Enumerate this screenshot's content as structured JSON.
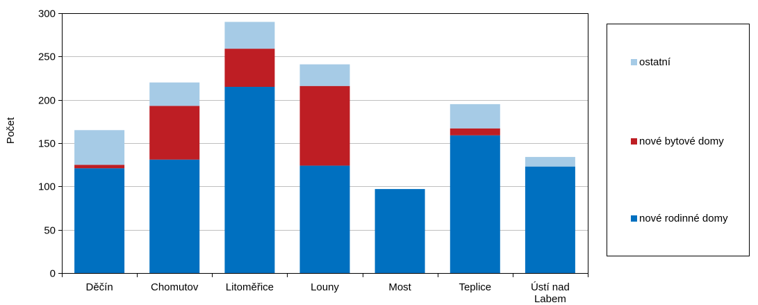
{
  "chart_data": {
    "type": "bar",
    "stacked": true,
    "title": "",
    "xlabel": "",
    "ylabel": "Počet",
    "ylim": [
      0,
      300
    ],
    "yticks": [
      0,
      50,
      100,
      150,
      200,
      250,
      300
    ],
    "grid": true,
    "legend_position": "right",
    "categories": [
      "Děčín",
      "Chomutov",
      "Litoměřice",
      "Louny",
      "Most",
      "Teplice",
      "Ústí nad Labem"
    ],
    "category_lines": [
      [
        "Děčín"
      ],
      [
        "Chomutov"
      ],
      [
        "Litoměřice"
      ],
      [
        "Louny"
      ],
      [
        "Most"
      ],
      [
        "Teplice"
      ],
      [
        "Ústí nad",
        "Labem"
      ]
    ],
    "series": [
      {
        "name": "nové rodinné domy",
        "color": "#0070c0",
        "values": [
          121,
          131,
          215,
          124,
          97,
          159,
          123
        ]
      },
      {
        "name": "nové bytové domy",
        "color": "#be1e24",
        "values": [
          4,
          62,
          44,
          92,
          0,
          8,
          0
        ]
      },
      {
        "name": "ostatní",
        "color": "#a6cbe6",
        "values": [
          40,
          27,
          31,
          25,
          0,
          28,
          11
        ]
      }
    ]
  }
}
